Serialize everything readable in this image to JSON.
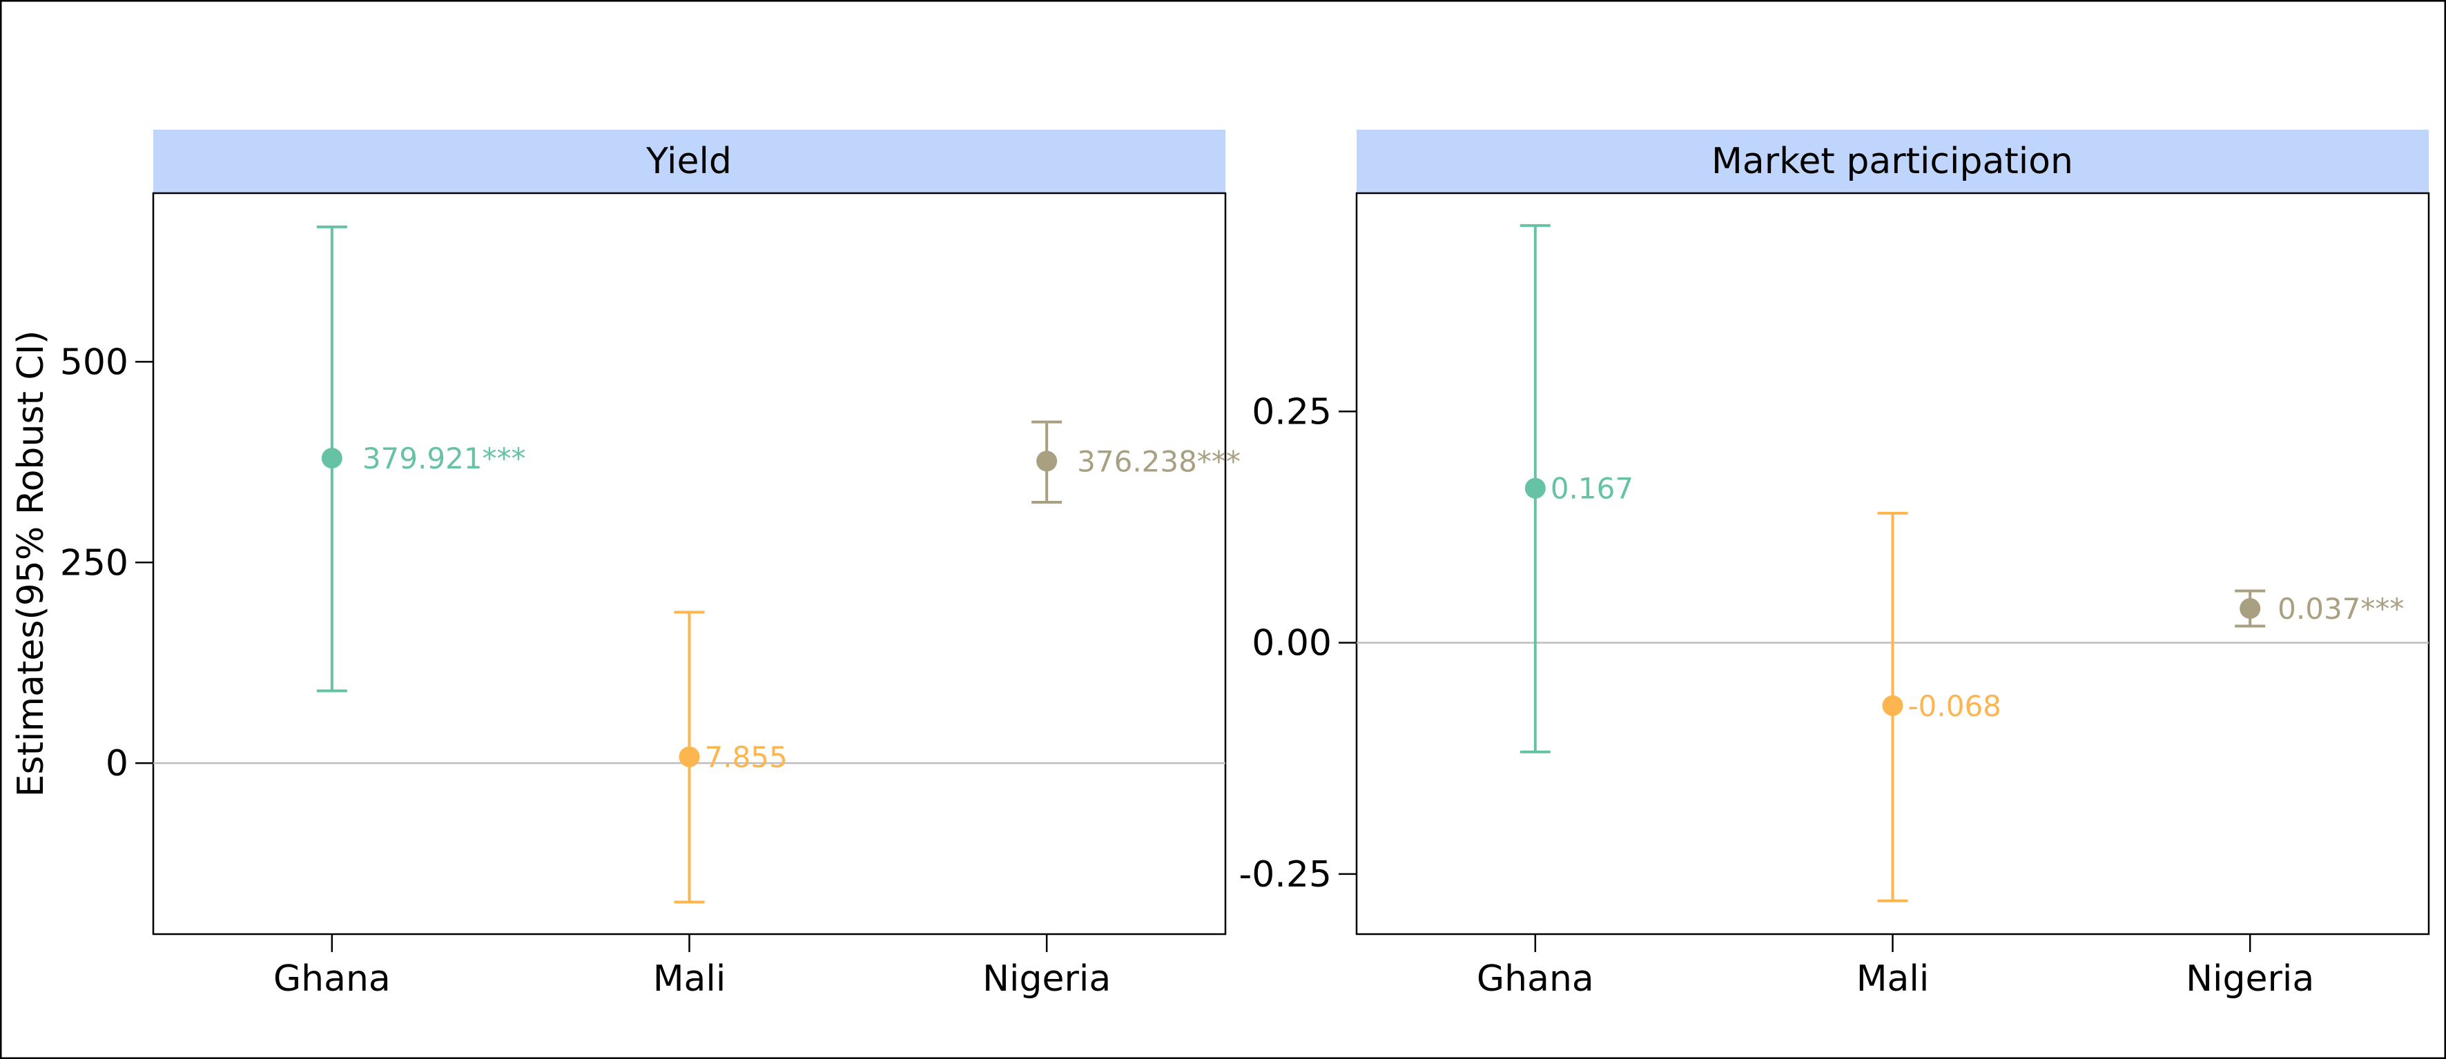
{
  "chart_data": [
    {
      "type": "errorbar",
      "title": "Yield",
      "ylabel": "Estimates(95% Robust CI)",
      "categories": [
        "Ghana",
        "Mali",
        "Nigeria"
      ],
      "estimates": [
        379.921,
        7.855,
        376.238
      ],
      "ci_lower": [
        90,
        -173,
        325
      ],
      "ci_upper": [
        668,
        188,
        425
      ],
      "data_labels": [
        "379.921***",
        "7.855",
        "376.238***"
      ],
      "colors": [
        "#66c2a5",
        "#fdb54f",
        "#a9a082"
      ],
      "ylim": [
        -213,
        710
      ],
      "yticks": [
        0,
        250,
        500
      ],
      "ytick_labels": [
        "0",
        "250",
        "500"
      ],
      "reference_line": 0,
      "grid": false
    },
    {
      "type": "errorbar",
      "title": "Market participation",
      "ylabel": "",
      "categories": [
        "Ghana",
        "Mali",
        "Nigeria"
      ],
      "estimates": [
        0.167,
        -0.068,
        0.037
      ],
      "ci_lower": [
        -0.118,
        -0.279,
        0.018
      ],
      "ci_upper": [
        0.451,
        0.14,
        0.056
      ],
      "data_labels": [
        "0.167",
        "-0.068",
        "0.037***"
      ],
      "colors": [
        "#66c2a5",
        "#fdb54f",
        "#a9a082"
      ],
      "ylim": [
        -0.315,
        0.486
      ],
      "yticks": [
        -0.25,
        0,
        0.25
      ],
      "ytick_labels": [
        "-0.25",
        "0.00",
        "0.25"
      ],
      "reference_line": 0,
      "grid": false
    }
  ]
}
